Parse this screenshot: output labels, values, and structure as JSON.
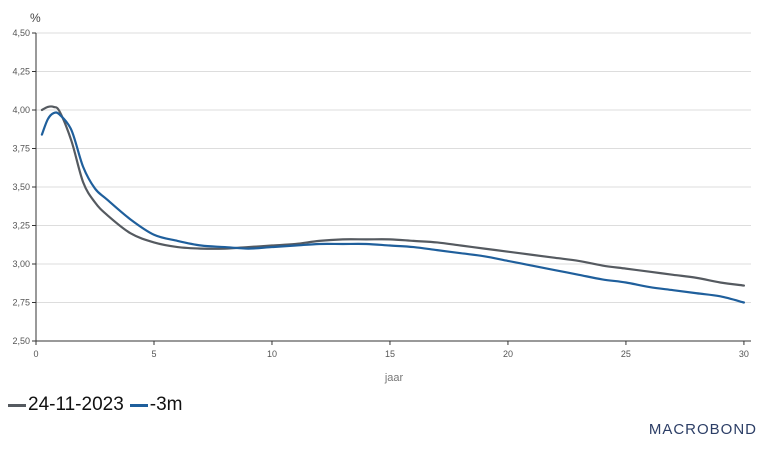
{
  "chart_data": {
    "type": "line",
    "unit_label": "%",
    "xlabel": "jaar",
    "xlim": [
      0,
      30.3
    ],
    "ylim": [
      2.5,
      4.5
    ],
    "x_ticks": [
      0,
      5,
      10,
      15,
      20,
      25,
      30
    ],
    "y_ticks": [
      2.5,
      2.75,
      3.0,
      3.25,
      3.5,
      3.75,
      4.0,
      4.25,
      4.5
    ],
    "y_tick_labels": [
      "2,50",
      "2,75",
      "3,00",
      "3,25",
      "3,50",
      "3,75",
      "4,00",
      "4,25",
      "4,50"
    ],
    "grid": true,
    "legend_position": "bottom-left",
    "series": [
      {
        "name": "24-11-2023",
        "color": "#555a60",
        "x": [
          0.25,
          0.5,
          0.75,
          1,
          1.5,
          2,
          2.5,
          3,
          4,
          5,
          6,
          7,
          8,
          9,
          10,
          11,
          12,
          13,
          14,
          15,
          16,
          17,
          18,
          19,
          20,
          21,
          22,
          23,
          24,
          25,
          26,
          27,
          28,
          29,
          30
        ],
        "values": [
          4.0,
          4.02,
          4.02,
          3.99,
          3.8,
          3.53,
          3.4,
          3.32,
          3.2,
          3.14,
          3.11,
          3.1,
          3.1,
          3.11,
          3.12,
          3.13,
          3.15,
          3.16,
          3.16,
          3.16,
          3.15,
          3.14,
          3.12,
          3.1,
          3.08,
          3.06,
          3.04,
          3.02,
          2.99,
          2.97,
          2.95,
          2.93,
          2.91,
          2.88,
          2.86
        ]
      },
      {
        "name": "-3m",
        "color": "#1f5f9c",
        "x": [
          0.25,
          0.5,
          0.75,
          1,
          1.5,
          2,
          2.5,
          3,
          4,
          5,
          6,
          7,
          8,
          9,
          10,
          11,
          12,
          13,
          14,
          15,
          16,
          17,
          18,
          19,
          20,
          21,
          22,
          23,
          24,
          25,
          26,
          27,
          28,
          29,
          30
        ],
        "values": [
          3.84,
          3.94,
          3.98,
          3.97,
          3.87,
          3.63,
          3.49,
          3.42,
          3.29,
          3.19,
          3.15,
          3.12,
          3.11,
          3.1,
          3.11,
          3.12,
          3.13,
          3.13,
          3.13,
          3.12,
          3.11,
          3.09,
          3.07,
          3.05,
          3.02,
          2.99,
          2.96,
          2.93,
          2.9,
          2.88,
          2.85,
          2.83,
          2.81,
          2.79,
          2.75
        ]
      }
    ]
  },
  "brand": "MACROBOND"
}
